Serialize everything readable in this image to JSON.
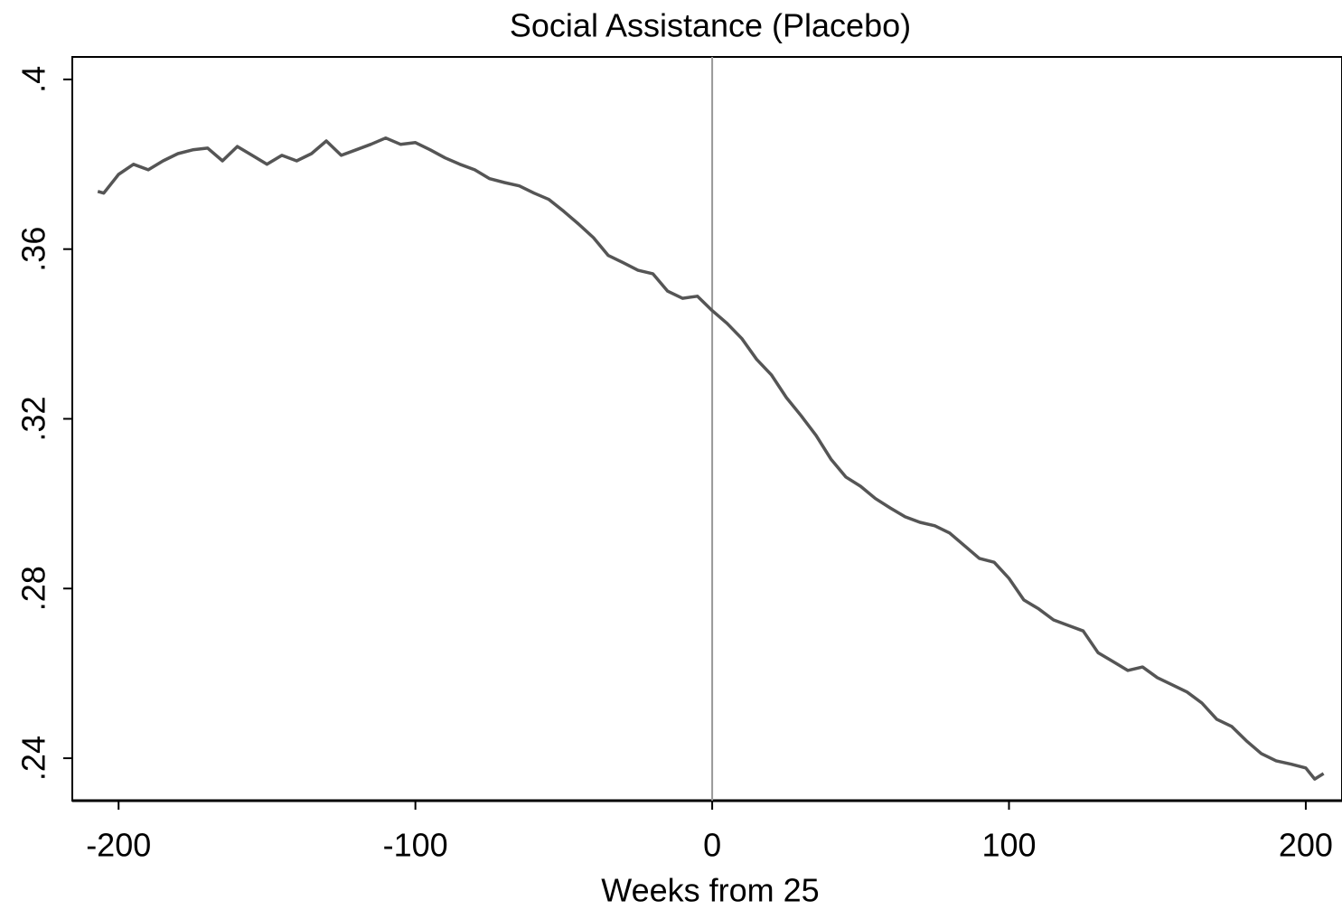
{
  "chart_data": {
    "type": "line",
    "title": "Social Assistance (Placebo)",
    "x_label": "Weeks from 25",
    "x": [
      -207,
      -205,
      -200,
      -195,
      -190,
      -185,
      -180,
      -175,
      -170,
      -165,
      -160,
      -155,
      -150,
      -145,
      -140,
      -135,
      -130,
      -125,
      -120,
      -115,
      -110,
      -105,
      -100,
      -95,
      -90,
      -85,
      -80,
      -75,
      -70,
      -65,
      -60,
      -55,
      -50,
      -45,
      -40,
      -35,
      -30,
      -25,
      -20,
      -15,
      -10,
      -5,
      0,
      5,
      10,
      15,
      20,
      25,
      30,
      35,
      40,
      45,
      50,
      55,
      60,
      65,
      70,
      75,
      80,
      85,
      90,
      95,
      100,
      105,
      110,
      115,
      120,
      125,
      130,
      135,
      140,
      145,
      150,
      155,
      160,
      165,
      170,
      175,
      180,
      185,
      190,
      195,
      200,
      203,
      206
    ],
    "series": [
      {
        "color": "#555555",
        "values": [
          0.3736,
          0.3732,
          0.3776,
          0.38,
          0.3787,
          0.3808,
          0.3825,
          0.3834,
          0.3838,
          0.3808,
          0.3842,
          0.3821,
          0.38,
          0.3821,
          0.3808,
          0.3825,
          0.3855,
          0.3821,
          0.3834,
          0.3847,
          0.3862,
          0.3847,
          0.3851,
          0.3834,
          0.3815,
          0.38,
          0.3787,
          0.3766,
          0.3757,
          0.3749,
          0.3732,
          0.3717,
          0.3689,
          0.3659,
          0.3627,
          0.3585,
          0.3568,
          0.355,
          0.3542,
          0.3501,
          0.3484,
          0.3489,
          0.3455,
          0.3425,
          0.3389,
          0.334,
          0.3303,
          0.325,
          0.3207,
          0.3161,
          0.3105,
          0.3063,
          0.3041,
          0.3012,
          0.299,
          0.2969,
          0.2956,
          0.2948,
          0.2931,
          0.2901,
          0.2871,
          0.2862,
          0.2824,
          0.2773,
          0.2752,
          0.2726,
          0.2713,
          0.27,
          0.2649,
          0.2628,
          0.2607,
          0.2615,
          0.259,
          0.2573,
          0.2556,
          0.253,
          0.2492,
          0.2475,
          0.2441,
          0.2411,
          0.2394,
          0.2386,
          0.2377,
          0.2351,
          0.2364
        ]
      }
    ],
    "xlim": [
      -215.6,
      212.2
    ],
    "xticks": [
      -200,
      -100,
      0,
      100,
      200
    ],
    "ylim": [
      0.23,
      0.4053
    ],
    "yticks": [
      {
        "value": 0.24,
        "label": ".24"
      },
      {
        "value": 0.28,
        "label": ".28"
      },
      {
        "value": 0.32,
        "label": ".32"
      },
      {
        "value": 0.36,
        "label": ".36"
      },
      {
        "value": 0.4,
        "label": ".4"
      }
    ],
    "vline": 0,
    "vline_color": "#999999"
  }
}
